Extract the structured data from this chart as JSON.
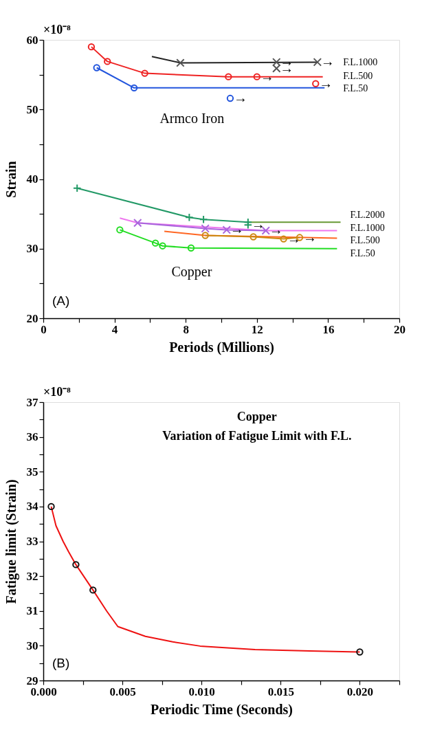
{
  "chart_data": [
    {
      "type": "line",
      "xlabel": "Periods (Millions)",
      "ylabel": "Strain",
      "xlim": [
        0,
        20
      ],
      "ylim": [
        20,
        60
      ],
      "xticks": [
        0,
        {
          "value": 2,
          "label": null
        },
        4,
        {
          "value": 6,
          "label": null
        },
        8,
        {
          "value": 10,
          "label": null
        },
        12,
        {
          "value": 14,
          "label": null
        },
        16,
        {
          "value": 18,
          "label": null
        },
        20
      ],
      "yticks": [
        20,
        {
          "value": 25,
          "label": null
        },
        30,
        {
          "value": 35,
          "label": null
        },
        40,
        {
          "value": 45,
          "label": null
        },
        50,
        {
          "value": 55,
          "label": null
        },
        60
      ],
      "grid": false,
      "series": [
        {
          "color": "#222222",
          "x": [
            6.1,
            7.7,
            15.4
          ],
          "values": [
            57.6,
            56.7,
            56.8
          ]
        },
        {
          "type": "scatter",
          "marker": "x",
          "color": "#555555",
          "x": [
            7.7,
            13.1,
            13.1,
            15.4
          ],
          "values": [
            56.7,
            56.8,
            55.9,
            56.8
          ]
        },
        {
          "color": "#ee2222",
          "x": [
            2.7,
            3.6,
            5.7,
            10.4,
            12.0,
            15.7
          ],
          "values": [
            59.0,
            56.9,
            55.2,
            54.7,
            54.7,
            54.7
          ]
        },
        {
          "type": "scatter",
          "marker": "circle",
          "color": "#ee2222",
          "x": [
            2.7,
            3.6,
            5.7,
            10.4,
            12.0,
            15.3
          ],
          "values": [
            59.0,
            56.9,
            55.2,
            54.7,
            54.7,
            53.7
          ]
        },
        {
          "color": "#2255dd",
          "x": [
            3.0,
            5.1,
            15.8
          ],
          "values": [
            56.0,
            53.1,
            53.1
          ]
        },
        {
          "type": "scatter",
          "marker": "circle",
          "color": "#2255dd",
          "x": [
            3.0,
            5.1,
            10.5
          ],
          "values": [
            56.0,
            53.1,
            51.6
          ]
        },
        {
          "color": "#229966",
          "x": [
            1.9,
            8.2,
            9.0,
            11.5
          ],
          "values": [
            38.7,
            34.5,
            34.2,
            33.8
          ]
        },
        {
          "color": "#669933",
          "x": [
            11.5,
            16.7
          ],
          "values": [
            33.8,
            33.8
          ]
        },
        {
          "type": "scatter",
          "marker": "cross",
          "color": "#229966",
          "x": [
            1.9,
            8.2,
            9.0,
            11.5,
            11.5
          ],
          "values": [
            38.7,
            34.5,
            34.2,
            33.8,
            33.4
          ]
        },
        {
          "color": "#ee77ee",
          "x": [
            4.3,
            5.3,
            12.5,
            16.5
          ],
          "values": [
            34.4,
            33.7,
            32.6,
            32.6
          ]
        },
        {
          "color": "#aa66dd",
          "x": [
            5.3,
            9.1,
            10.3,
            12.5
          ],
          "values": [
            33.7,
            32.9,
            32.7,
            32.6
          ]
        },
        {
          "type": "scatter",
          "marker": "x",
          "color": "#aa66dd",
          "x": [
            5.3,
            9.1,
            10.3,
            12.5
          ],
          "values": [
            33.7,
            32.9,
            32.7,
            32.6
          ]
        },
        {
          "color": "#ff6622",
          "x": [
            6.8,
            9.1,
            16.5
          ],
          "values": [
            32.5,
            31.9,
            31.5
          ]
        },
        {
          "color": "#cc8811",
          "x": [
            9.1,
            11.8,
            13.5,
            14.4
          ],
          "values": [
            31.9,
            31.7,
            31.4,
            31.6
          ]
        },
        {
          "type": "scatter",
          "marker": "circle",
          "color": "#cc8811",
          "x": [
            9.1,
            11.8,
            13.5,
            14.4
          ],
          "values": [
            31.9,
            31.7,
            31.4,
            31.6
          ]
        },
        {
          "color": "#22dd22",
          "x": [
            4.3,
            6.3,
            6.7,
            8.3,
            16.5
          ],
          "values": [
            32.7,
            30.8,
            30.4,
            30.1,
            30.0
          ]
        },
        {
          "type": "scatter",
          "marker": "circle",
          "color": "#22dd22",
          "x": [
            4.3,
            6.3,
            6.7,
            8.3
          ],
          "values": [
            32.7,
            30.8,
            30.4,
            30.1
          ]
        }
      ],
      "annotations": [
        "×10⁻⁸",
        "F.L.1000",
        "F.L.500",
        "F.L.50",
        "F.L.2000",
        "F.L.1000",
        "F.L.500",
        "F.L.50",
        "Armco Iron",
        "Copper",
        "(A)",
        {
          "text": "→",
          "x": 13.1,
          "y": 56.8
        },
        {
          "text": "→",
          "x": 13.1,
          "y": 55.9
        },
        {
          "text": "→",
          "x": 15.4,
          "y": 56.8
        },
        {
          "text": "→",
          "x": 12.0,
          "y": 54.7
        },
        {
          "text": "→",
          "x": 15.3,
          "y": 53.7
        },
        {
          "text": "→",
          "x": 10.5,
          "y": 51.6
        },
        {
          "text": "→",
          "x": 11.5,
          "y": 33.4
        },
        {
          "text": "→",
          "x": 10.3,
          "y": 32.7
        },
        {
          "text": "→",
          "x": 12.5,
          "y": 32.6
        },
        {
          "text": "→",
          "x": 13.5,
          "y": 31.4
        },
        {
          "text": "→",
          "x": 14.4,
          "y": 31.6
        }
      ]
    },
    {
      "type": "line",
      "title": "Copper",
      "subtitle": "Variation of Fatigue Limit with F.L.",
      "xlabel": "Periodic Time (Seconds)",
      "ylabel": "Fatigue limit (Strain)",
      "xlim": [
        0,
        0.0225
      ],
      "ylim": [
        29,
        37
      ],
      "xticks": [
        {
          "value": 0,
          "label": "0.000"
        },
        {
          "value": 0.0025,
          "label": null
        },
        {
          "value": 0.005,
          "label": "0.005"
        },
        {
          "value": 0.0075,
          "label": null
        },
        {
          "value": 0.01,
          "label": "0.010"
        },
        {
          "value": 0.0125,
          "label": null
        },
        {
          "value": 0.015,
          "label": "0.015"
        },
        {
          "value": 0.0175,
          "label": null
        },
        {
          "value": 0.02,
          "label": "0.020"
        },
        {
          "value": 0.0225,
          "label": null
        }
      ],
      "yticks": [
        29,
        {
          "value": 29.5,
          "label": null
        },
        30,
        {
          "value": 30.5,
          "label": null
        },
        31,
        {
          "value": 31.5,
          "label": null
        },
        32,
        {
          "value": 32.5,
          "label": null
        },
        33,
        {
          "value": 33.5,
          "label": null
        },
        34,
        {
          "value": 34.5,
          "label": null
        },
        35,
        {
          "value": 35.5,
          "label": null
        },
        36,
        {
          "value": 36.5,
          "label": null
        },
        37
      ],
      "grid": false,
      "series": [
        {
          "color": "#ee1111",
          "x": [
            0.0005,
            0.0008,
            0.00125,
            0.0016,
            0.00206,
            0.00314,
            0.004,
            0.00471,
            0.00645,
            0.00818,
            0.00991,
            0.01338,
            0.01685,
            0.02
          ],
          "values": [
            34.0,
            33.45,
            33.0,
            32.7,
            32.33,
            31.6,
            31.0,
            30.55,
            30.27,
            30.11,
            29.99,
            29.89,
            29.85,
            29.82
          ]
        },
        {
          "type": "scatter",
          "marker": "circle",
          "color": "#111111",
          "x": [
            0.0005,
            0.00206,
            0.00314,
            0.02
          ],
          "values": [
            34.0,
            32.33,
            31.6,
            29.82
          ]
        }
      ],
      "annotations": [
        "×10⁻⁸",
        "(B)"
      ]
    }
  ]
}
